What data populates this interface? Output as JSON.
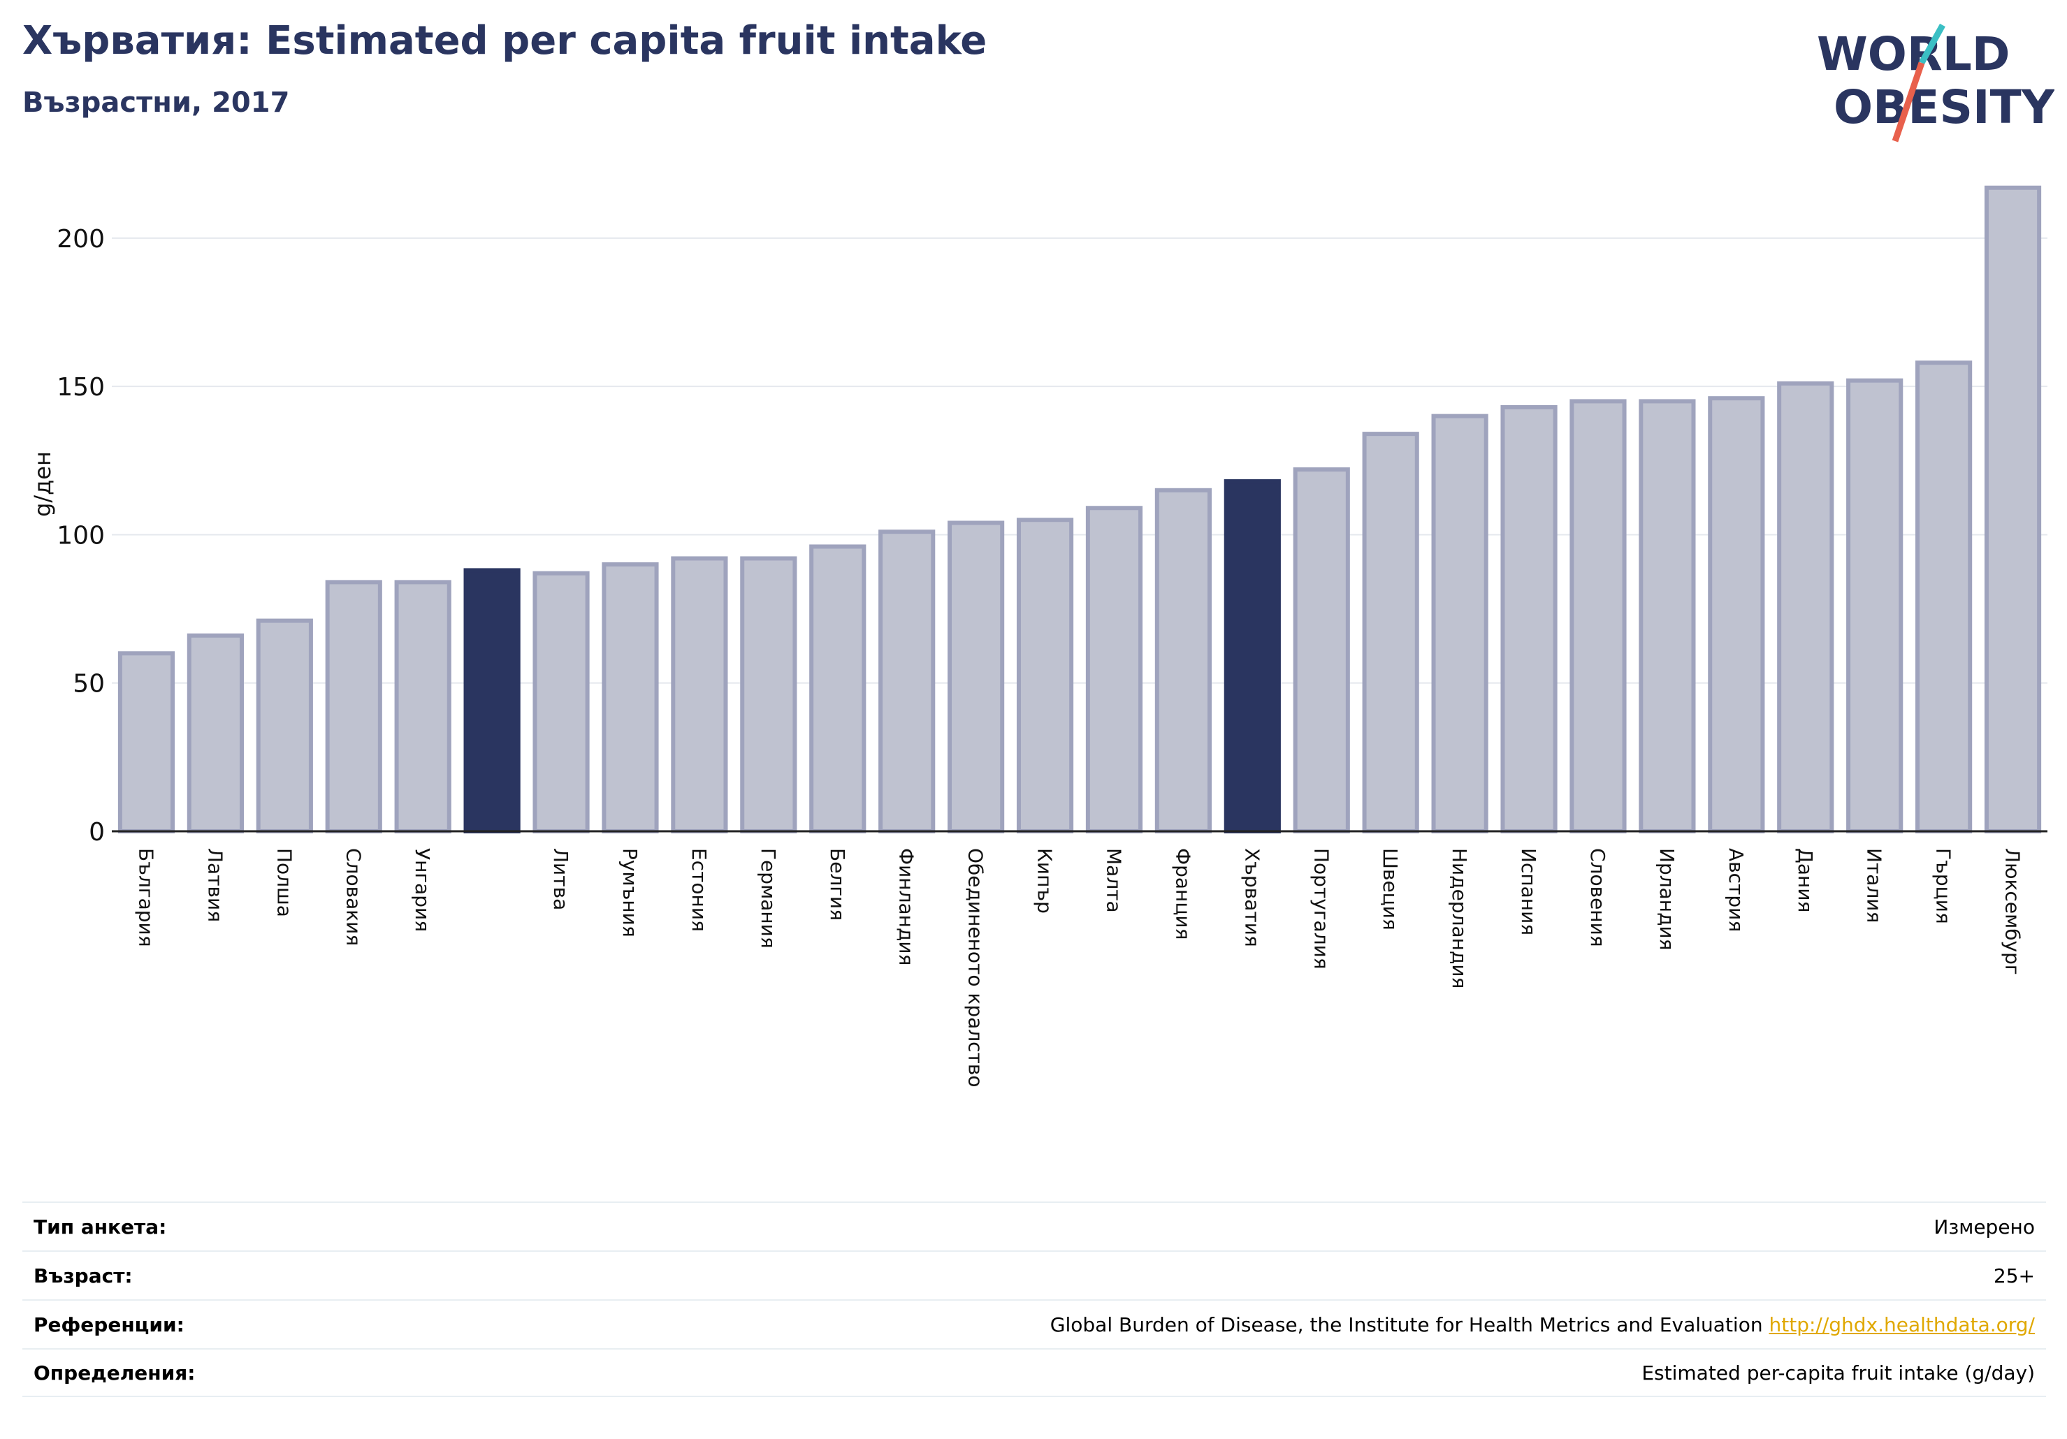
{
  "header": {
    "title": "Хърватия: Estimated per capita fruit intake",
    "subtitle": "Възрастни, 2017"
  },
  "logo": {
    "line1": "WORLD",
    "line2": "OBESITY"
  },
  "colors": {
    "bar_fill": "#bfc2d0",
    "bar_stroke": "#9fa3bd",
    "highlight": "#2a3560",
    "title": "#2a3560",
    "grid": "#e5e8ee",
    "link": "#e0a800",
    "logo_teal": "#3bbfc4",
    "logo_red": "#e8604c"
  },
  "chart_data": {
    "type": "bar",
    "ylabel": "g/ден",
    "ylim": [
      0,
      220
    ],
    "yticks": [
      0,
      50,
      100,
      150,
      200
    ],
    "grid": true,
    "categories": [
      "България",
      "Латвия",
      "Полша",
      "Словакия",
      "Унгария",
      "",
      "Литва",
      "Румъния",
      "Естония",
      "Германия",
      "Белгия",
      "Финландия",
      "Обединеното кралство",
      "Кипър",
      "Малта",
      "Франция",
      "Хърватия",
      "Португалия",
      "Швеция",
      "Нидерландия",
      "Испания",
      "Словения",
      "Ирландия",
      "Австрия",
      "Дания",
      "Италия",
      "Гърция",
      "Люксембург"
    ],
    "values": [
      60,
      66,
      71,
      84,
      84,
      88,
      87,
      90,
      92,
      92,
      96,
      101,
      104,
      105,
      109,
      115,
      118,
      122,
      134,
      140,
      143,
      145,
      145,
      146,
      151,
      152,
      158,
      217
    ],
    "highlighted": [
      5,
      16
    ]
  },
  "info": [
    {
      "label": "Тип анкета:",
      "value": "Измерено",
      "link": ""
    },
    {
      "label": "Възраст:",
      "value": "25+",
      "link": ""
    },
    {
      "label": "Референции:",
      "value": "Global Burden of Disease, the Institute for Health Metrics and Evaluation ",
      "link": "http://ghdx.healthdata.org/"
    },
    {
      "label": "Определения:",
      "value": "Estimated per-capita fruit intake (g/day)",
      "link": ""
    }
  ]
}
